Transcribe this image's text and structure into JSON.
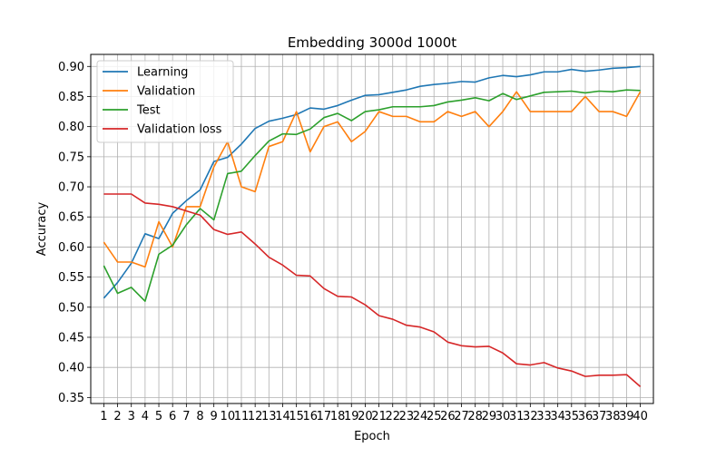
{
  "chart_data": {
    "type": "line",
    "title": "Embedding 3000d 1000t",
    "xlabel": "Epoch",
    "ylabel": "Accuracy",
    "x": [
      1,
      2,
      3,
      4,
      5,
      6,
      7,
      8,
      9,
      10,
      11,
      12,
      13,
      14,
      15,
      16,
      17,
      18,
      19,
      20,
      21,
      22,
      23,
      24,
      25,
      26,
      27,
      28,
      29,
      30,
      31,
      32,
      33,
      34,
      35,
      36,
      37,
      38,
      39,
      40
    ],
    "xticks": [
      "1",
      "2",
      "3",
      "4",
      "5",
      "6",
      "7",
      "8",
      "9",
      "10",
      "11",
      "12",
      "13",
      "14",
      "15",
      "16",
      "17",
      "18",
      "19",
      "20",
      "21",
      "22",
      "23",
      "24",
      "25",
      "26",
      "27",
      "28",
      "29",
      "30",
      "31",
      "32",
      "33",
      "34",
      "35",
      "36",
      "37",
      "38",
      "39",
      "40"
    ],
    "xlim": [
      0.05,
      40.95
    ],
    "ylim": [
      0.34,
      0.92
    ],
    "yticks": [
      0.35,
      0.4,
      0.45,
      0.5,
      0.55,
      0.6,
      0.65,
      0.7,
      0.75,
      0.8,
      0.85,
      0.9
    ],
    "ytick_labels": [
      "0.35",
      "0.40",
      "0.45",
      "0.50",
      "0.55",
      "0.60",
      "0.65",
      "0.70",
      "0.75",
      "0.80",
      "0.85",
      "0.90"
    ],
    "grid": true,
    "legend_position": "top-left",
    "series": [
      {
        "name": "Learning",
        "color": "#1f77b4",
        "values": [
          0.515,
          0.541,
          0.573,
          0.622,
          0.614,
          0.656,
          0.677,
          0.695,
          0.742,
          0.749,
          0.771,
          0.797,
          0.809,
          0.814,
          0.82,
          0.831,
          0.829,
          0.835,
          0.844,
          0.852,
          0.853,
          0.857,
          0.861,
          0.867,
          0.87,
          0.872,
          0.875,
          0.874,
          0.881,
          0.885,
          0.883,
          0.886,
          0.891,
          0.891,
          0.895,
          0.892,
          0.894,
          0.897,
          0.898,
          0.9
        ]
      },
      {
        "name": "Validation",
        "color": "#ff7f0e",
        "values": [
          0.608,
          0.575,
          0.575,
          0.567,
          0.642,
          0.6,
          0.667,
          0.667,
          0.733,
          0.775,
          0.7,
          0.692,
          0.767,
          0.775,
          0.825,
          0.758,
          0.8,
          0.808,
          0.775,
          0.792,
          0.825,
          0.817,
          0.817,
          0.808,
          0.808,
          0.825,
          0.817,
          0.825,
          0.8,
          0.825,
          0.858,
          0.825,
          0.825,
          0.825,
          0.825,
          0.85,
          0.825,
          0.825,
          0.817,
          0.858
        ]
      },
      {
        "name": "Test",
        "color": "#2ca02c",
        "values": [
          0.569,
          0.523,
          0.533,
          0.51,
          0.588,
          0.603,
          0.637,
          0.664,
          0.645,
          0.722,
          0.726,
          0.752,
          0.776,
          0.788,
          0.787,
          0.796,
          0.815,
          0.822,
          0.81,
          0.825,
          0.828,
          0.833,
          0.833,
          0.833,
          0.835,
          0.841,
          0.844,
          0.848,
          0.843,
          0.855,
          0.845,
          0.851,
          0.857,
          0.858,
          0.859,
          0.856,
          0.859,
          0.858,
          0.861,
          0.86
        ]
      },
      {
        "name": "Validation loss",
        "color": "#d62728",
        "values": [
          0.688,
          0.688,
          0.688,
          0.673,
          0.671,
          0.667,
          0.66,
          0.653,
          0.629,
          0.621,
          0.625,
          0.605,
          0.583,
          0.57,
          0.553,
          0.552,
          0.531,
          0.518,
          0.517,
          0.504,
          0.486,
          0.48,
          0.47,
          0.467,
          0.459,
          0.442,
          0.436,
          0.434,
          0.435,
          0.424,
          0.406,
          0.404,
          0.408,
          0.399,
          0.394,
          0.385,
          0.387,
          0.387,
          0.388,
          0.368
        ]
      }
    ]
  }
}
